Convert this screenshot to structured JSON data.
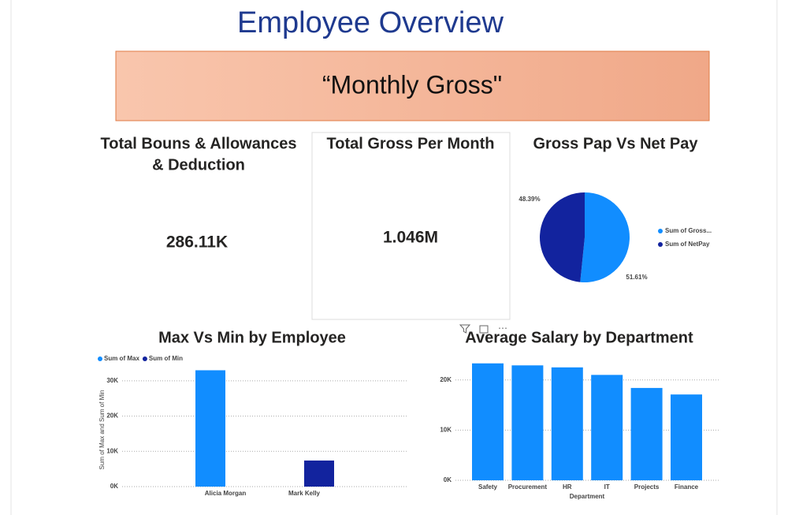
{
  "header": {
    "title": "Employee Overview",
    "banner": "“Monthly Gross\""
  },
  "kpis": [
    {
      "title": "Total Bouns & Allowances",
      "title_line2": "& Deduction",
      "value": "286.11K"
    },
    {
      "title": "Total Gross Per Month",
      "value": "1.046M"
    }
  ],
  "chart_data": [
    {
      "type": "pie",
      "title": "Gross Pap Vs Net Pay",
      "categories": [
        "Sum of Gross...",
        "Sum of NetPay"
      ],
      "values": [
        51.61,
        48.39
      ],
      "value_labels": [
        "51.61%",
        "48.39%"
      ],
      "colors": [
        "#118dff",
        "#12239e"
      ],
      "legend": "right"
    },
    {
      "type": "bar",
      "title": "Max Vs Min by Employee",
      "categories": [
        "Alicia Morgan",
        "Mark Kelly"
      ],
      "series": [
        {
          "name": "Sum of Max",
          "color": "#118dff",
          "values": [
            33000,
            null
          ]
        },
        {
          "name": "Sum of Min",
          "color": "#12239e",
          "values": [
            null,
            7400
          ]
        }
      ],
      "y_label": "Sum of Max and Sum of Min",
      "ylim": [
        0,
        34000
      ],
      "yticks": [
        {
          "value": 0,
          "label": "0K"
        },
        {
          "value": 10000,
          "label": "10K"
        },
        {
          "value": 20000,
          "label": "20K"
        },
        {
          "value": 30000,
          "label": "30K"
        }
      ],
      "grid": true,
      "legend": "top-left"
    },
    {
      "type": "bar",
      "title": "Average Salary by Department",
      "categories": [
        "Safety",
        "Procurement",
        "HR",
        "IT",
        "Projects",
        "Finance"
      ],
      "series": [
        {
          "name": "Average Salary",
          "color": "#118dff",
          "values": [
            23300,
            22900,
            22500,
            21000,
            18400,
            17100
          ]
        }
      ],
      "x_label": "Department",
      "ylim": [
        0,
        24200
      ],
      "yticks": [
        {
          "value": 0,
          "label": "0K"
        },
        {
          "value": 10000,
          "label": "10K"
        },
        {
          "value": 20000,
          "label": "20K"
        }
      ],
      "grid": true
    }
  ]
}
